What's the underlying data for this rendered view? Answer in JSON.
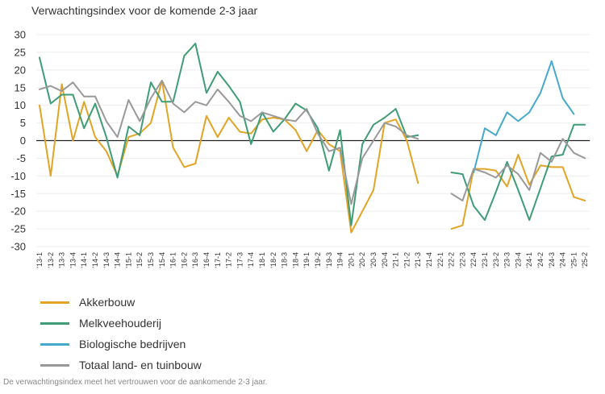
{
  "chart_data": {
    "type": "line",
    "title": "Verwachtingsindex voor de komende 2-3 jaar",
    "xlabel": "",
    "ylabel": "",
    "ylim": [
      -30,
      30
    ],
    "yticks": [
      30,
      25,
      20,
      15,
      10,
      5,
      0,
      -5,
      -10,
      -15,
      -20,
      -25,
      -30
    ],
    "grid": true,
    "legend_position": "bottom-left",
    "categories": [
      "'13-1",
      "'13-2",
      "'13-3",
      "'13-4",
      "'14-1",
      "'14-2",
      "'14-3",
      "'14-4",
      "'15-1",
      "'15-2",
      "'15-3",
      "'15-4",
      "'16-1",
      "'16-2",
      "'16-3",
      "'16-4",
      "'17-1",
      "'17-2",
      "'17-3",
      "'17-4",
      "'18-1",
      "'18-2",
      "'18-3",
      "'18-4",
      "'19-1",
      "'19-2",
      "'19-3",
      "'19-4",
      "'20-1",
      "'20-2",
      "'20-3",
      "'20-4",
      "'21-1",
      "'21-2",
      "'21-3",
      "'21-4",
      "'22-1",
      "'22-2",
      "'22-3",
      "'22-4",
      "'23-1",
      "'23-2",
      "'23-3",
      "'23-4",
      "'24-1",
      "'24-2",
      "'24-3",
      "'24-4",
      "'25-1",
      "'25-2"
    ],
    "series": [
      {
        "name": "Akkerbouw",
        "color": "#E2A424",
        "values": [
          10,
          -10,
          16,
          0,
          11,
          1,
          -3,
          -10,
          1,
          2,
          5,
          17,
          -2,
          -7.5,
          -6.5,
          7,
          1,
          6.5,
          2.5,
          2,
          6,
          6.5,
          6,
          3,
          -3,
          3,
          -1,
          -3,
          -26,
          -20,
          -14,
          5,
          6,
          0,
          -12,
          null,
          null,
          -25,
          -24,
          -8,
          -8,
          -8.5,
          -13,
          -4,
          -12.5,
          -7,
          -7.5,
          -7.5,
          -16,
          -17
        ]
      },
      {
        "name": "Melkveehouderij",
        "color": "#3E9C76",
        "values": [
          23.5,
          10.5,
          13,
          13,
          3.5,
          10.5,
          1,
          -10.5,
          4,
          1.5,
          16.5,
          11,
          11,
          24,
          27.5,
          13.5,
          19.5,
          15.5,
          11,
          -1,
          8,
          2.5,
          6,
          10.5,
          8.5,
          3.5,
          -8.5,
          3,
          -24,
          -1,
          4.5,
          6.5,
          9,
          1,
          1.5,
          null,
          null,
          -9,
          -9.5,
          -18.5,
          -22.5,
          -14.5,
          -6,
          -14,
          -22.5,
          -13.5,
          -4.5,
          -4,
          4.5,
          4.5
        ]
      },
      {
        "name": "Biologische bedrijven",
        "color": "#45A9CB",
        "values": [
          null,
          null,
          null,
          null,
          null,
          null,
          null,
          null,
          null,
          null,
          null,
          null,
          null,
          null,
          null,
          null,
          null,
          null,
          null,
          null,
          null,
          null,
          null,
          null,
          null,
          null,
          null,
          null,
          null,
          null,
          null,
          null,
          null,
          null,
          null,
          null,
          null,
          null,
          null,
          -9,
          3.5,
          1.5,
          8,
          5.5,
          8,
          13.5,
          22.5,
          12,
          7.5,
          null
        ]
      },
      {
        "name": "Totaal land- en tuinbouw",
        "color": "#999999",
        "values": [
          14.5,
          15.5,
          14,
          16.5,
          12.5,
          12.5,
          5.5,
          1,
          11.5,
          5.5,
          12,
          17,
          10.5,
          8,
          11,
          10,
          14.5,
          11,
          7,
          5.5,
          8,
          7,
          6,
          5.5,
          9,
          2,
          -3,
          -2,
          -18,
          -5,
          0,
          5,
          4,
          1.5,
          0.5,
          null,
          null,
          -15,
          -17,
          -8,
          -9,
          -10.5,
          -7,
          -9.5,
          -14,
          -3.5,
          -6,
          0.5,
          -3.5,
          -5
        ]
      }
    ]
  },
  "footnote": "De verwachtingsindex meet het vertrouwen voor de aankomende 2-3 jaar."
}
